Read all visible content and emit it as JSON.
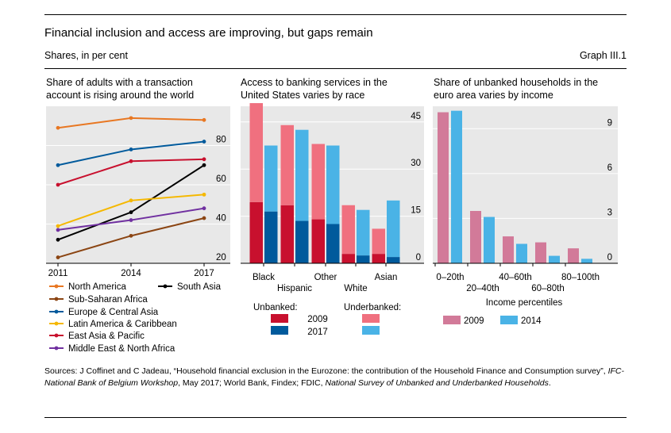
{
  "title": "Financial inclusion and access are improving, but gaps remain",
  "subtitle": "Shares, in per cent",
  "graph_number": "Graph III.1",
  "panels": {
    "left": {
      "title_line1": "Share of adults with a transaction",
      "title_line2": "account is rising around the world"
    },
    "middle": {
      "title_line1": "Access to banking services in the",
      "title_line2": "United States varies by race"
    },
    "right": {
      "title_line1": "Share of unbanked households in the",
      "title_line2": "euro area varies by income"
    }
  },
  "legend_middle": {
    "unbanked_label": "Unbanked:",
    "underbanked_label": "Underbanked:",
    "year1": "2009",
    "year2": "2017",
    "colors": {
      "unbanked_2009": "#c8102e",
      "unbanked_2017": "#005a9c",
      "underbanked_2009": "#f0707f",
      "underbanked_2017": "#4ab3e6"
    }
  },
  "sources": {
    "prefix": "Sources: J Coffinet and C Jadeau, “Household financial exclusion in the Eurozone: the contribution of the Household Finance and Consumption survey”, ",
    "italic1": "IFC-National Bank of Belgium Workshop",
    "middle": ", May 2017; World Bank, Findex; FDIC, ",
    "italic2": "National Survey of Unbanked and Underbanked Households",
    "suffix": "."
  },
  "chart_data": [
    {
      "type": "line",
      "x": [
        2011,
        2014,
        2017
      ],
      "ylim": [
        20,
        100
      ],
      "yticks": [
        20,
        40,
        60,
        80
      ],
      "series": [
        {
          "name": "North America",
          "color": "#e87722",
          "values": [
            89,
            94,
            93
          ]
        },
        {
          "name": "South Asia",
          "color": "#000000",
          "values": [
            32,
            46,
            70
          ]
        },
        {
          "name": "Sub-Saharan Africa",
          "color": "#8b4513",
          "values": [
            23,
            34,
            43
          ]
        },
        {
          "name": "Europe & Central Asia",
          "color": "#005a9c",
          "values": [
            70,
            78,
            82
          ]
        },
        {
          "name": "Latin America & Caribbean",
          "color": "#f5b800",
          "values": [
            39,
            52,
            55
          ]
        },
        {
          "name": "East Asia & Pacific",
          "color": "#c8102e",
          "values": [
            60,
            72,
            73
          ]
        },
        {
          "name": "Middle East & North Africa",
          "color": "#7030a0",
          "values": [
            37,
            42,
            48
          ]
        }
      ]
    },
    {
      "type": "bar",
      "categories": [
        "Black",
        "Hispanic",
        "Other",
        "White",
        "Asian"
      ],
      "ylim": [
        0,
        50
      ],
      "yticks": [
        0,
        15,
        30,
        45
      ],
      "series": [
        {
          "name": "Unbanked 2009",
          "values": [
            19.5,
            18.5,
            14,
            3,
            3
          ]
        },
        {
          "name": "Underbanked 2009",
          "values": [
            31.5,
            25.5,
            24,
            15.5,
            8
          ]
        },
        {
          "name": "Unbanked 2017",
          "values": [
            16.5,
            13.5,
            12.5,
            2.5,
            2
          ]
        },
        {
          "name": "Underbanked 2017",
          "values": [
            21,
            29,
            25,
            14.5,
            18
          ]
        }
      ]
    },
    {
      "type": "bar",
      "categories": [
        "0–20th",
        "20–40th",
        "40–60th",
        "60–80th",
        "80–100th"
      ],
      "xlabel": "Income percentiles",
      "ylim": [
        0,
        10.5
      ],
      "yticks": [
        0,
        3,
        6,
        9
      ],
      "series": [
        {
          "name": "2009",
          "color": "#d27a99",
          "values": [
            10.1,
            3.5,
            1.8,
            1.4,
            1.0
          ]
        },
        {
          "name": "2014",
          "color": "#4ab3e6",
          "values": [
            10.2,
            3.1,
            1.3,
            0.5,
            0.3
          ]
        }
      ]
    }
  ]
}
